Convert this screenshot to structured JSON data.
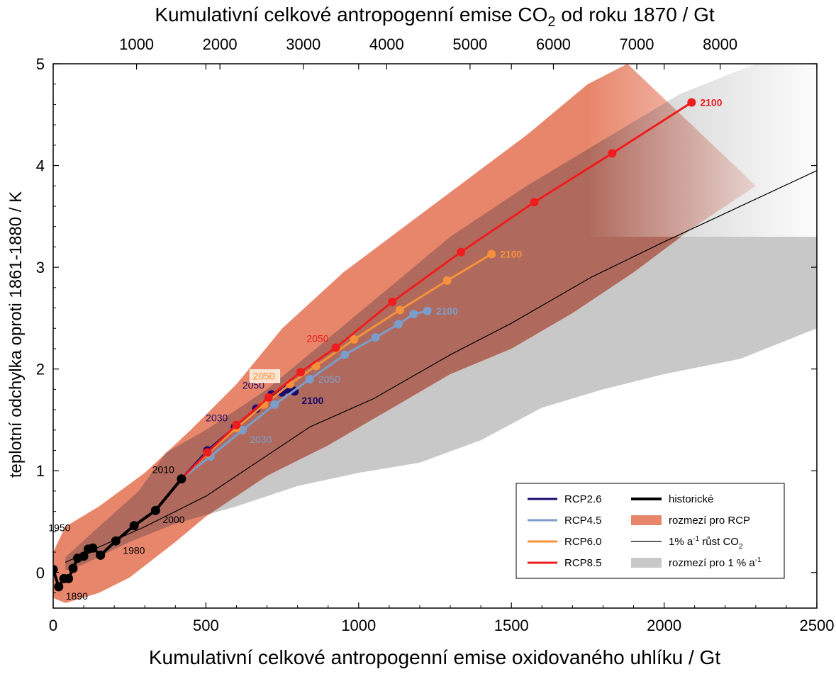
{
  "chart_data": {
    "type": "line",
    "title": "",
    "xlabel": "Kumulativní celkové antropogenní emise oxidovaného uhlíku  /  Gt",
    "ylabel": "teplotní odchylka oproti 1861-1880  /  K",
    "top_xlabel_parts": [
      "Kumulativní celkové antropogenní emise CO",
      "2",
      " od roku 1870  /  Gt"
    ],
    "xlim": [
      0,
      2500
    ],
    "ylim": [
      -0.35,
      5
    ],
    "xticks": [
      0,
      500,
      1000,
      1500,
      2000,
      2500
    ],
    "xtick_labels": [
      "0",
      "500",
      "1000",
      "1500",
      "2000",
      "2500"
    ],
    "yticks": [
      0,
      1,
      2,
      3,
      4,
      5
    ],
    "ytick_labels": [
      "0",
      "1",
      "2",
      "3",
      "4",
      "5"
    ],
    "top_ticks_co2": [
      1000,
      2000,
      3000,
      4000,
      5000,
      6000,
      7000,
      8000
    ],
    "top_tick_labels": [
      "1000",
      "2000",
      "3000",
      "4000",
      "5000",
      "6000",
      "7000",
      "8000"
    ],
    "grid": false,
    "legend_position": "bottom-right",
    "colors": {
      "rcp26": "#1a0a6b",
      "rcp45": "#7b9dcb",
      "rcp60": "#f5913a",
      "rcp85": "#ee1c1c",
      "historical": "#000000",
      "rcp_range": "#e8866b",
      "rcp_range_dark": "#b06a5d",
      "pct_range": "#c8c8c8",
      "pct_line": "#000000"
    },
    "series": [
      {
        "name": "RCP2.6",
        "color": "#1a0a6b",
        "x": [
          420,
          505,
          595,
          665,
          715,
          748,
          765,
          785,
          790
        ],
        "y": [
          0.92,
          1.2,
          1.43,
          1.61,
          1.75,
          1.77,
          1.8,
          1.79,
          1.78
        ],
        "labels": [
          {
            "text": "2030",
            "x": 595,
            "y": 1.43,
            "pos": "left"
          },
          {
            "text": "2050",
            "x": 715,
            "y": 1.75,
            "pos": "left"
          },
          {
            "text": "2100",
            "x": 790,
            "y": 1.78,
            "pos": "below-right"
          }
        ]
      },
      {
        "name": "RCP4.5",
        "color": "#7b9dcb",
        "x": [
          420,
          515,
          620,
          725,
          840,
          955,
          1055,
          1130,
          1180,
          1225
        ],
        "y": [
          0.92,
          1.14,
          1.4,
          1.65,
          1.9,
          2.14,
          2.31,
          2.44,
          2.54,
          2.57
        ],
        "labels": [
          {
            "text": "2030",
            "x": 620,
            "y": 1.4,
            "pos": "below-right"
          },
          {
            "text": "2050",
            "x": 840,
            "y": 1.9,
            "pos": "right"
          },
          {
            "text": "2100",
            "x": 1225,
            "y": 2.57,
            "pos": "right"
          }
        ]
      },
      {
        "name": "RCP6.0",
        "color": "#f5913a",
        "x": [
          420,
          505,
          600,
          690,
          775,
          860,
          985,
          1135,
          1290,
          1435
        ],
        "y": [
          0.92,
          1.17,
          1.42,
          1.65,
          1.85,
          2.03,
          2.29,
          2.58,
          2.87,
          3.13
        ],
        "labels": [
          {
            "text": "2050",
            "x": 700,
            "y": 1.93,
            "pos": "boxed"
          },
          {
            "text": "2100",
            "x": 1435,
            "y": 3.13,
            "pos": "right"
          }
        ]
      },
      {
        "name": "RCP8.5",
        "color": "#ee1c1c",
        "x": [
          420,
          505,
          600,
          705,
          810,
          925,
          1110,
          1335,
          1575,
          1830,
          2090
        ],
        "y": [
          0.92,
          1.18,
          1.45,
          1.72,
          1.97,
          2.21,
          2.66,
          3.15,
          3.64,
          4.12,
          4.62
        ],
        "labels": [
          {
            "text": "2050",
            "x": 925,
            "y": 2.21,
            "pos": "left"
          },
          {
            "text": "2100",
            "x": 2090,
            "y": 4.62,
            "pos": "right"
          }
        ]
      },
      {
        "name": "historické",
        "color": "#000000",
        "x": [
          0,
          18,
          35,
          50,
          65,
          80,
          100,
          115,
          130,
          155,
          205,
          265,
          335,
          420
        ],
        "y": [
          0.03,
          -0.14,
          -0.06,
          -0.06,
          0.04,
          0.14,
          0.16,
          0.23,
          0.24,
          0.17,
          0.31,
          0.46,
          0.61,
          0.92
        ],
        "labels": [
          {
            "text": "1890",
            "x": 18,
            "y": -0.14,
            "pos": "below-right"
          },
          {
            "text": "1950",
            "x": 80,
            "y": 0.35,
            "pos": "left"
          },
          {
            "text": "1980",
            "x": 205,
            "y": 0.31,
            "pos": "below-right"
          },
          {
            "text": "2000",
            "x": 335,
            "y": 0.61,
            "pos": "below-right"
          },
          {
            "text": "2010",
            "x": 420,
            "y": 0.92,
            "pos": "left"
          }
        ]
      },
      {
        "name": "1% a-1 růst CO2",
        "color": "#000000",
        "x": [
          40,
          150,
          300,
          500,
          650,
          840,
          1050,
          1300,
          1500,
          1760,
          2000,
          2250,
          2500
        ],
        "y": [
          0.1,
          0.25,
          0.45,
          0.75,
          1.05,
          1.43,
          1.71,
          2.14,
          2.45,
          2.9,
          3.25,
          3.6,
          3.95
        ]
      }
    ],
    "ranges": [
      {
        "name": "rozmezí pro RCP",
        "upper": {
          "x": [
            0,
            40,
            150,
            300,
            450,
            600,
            750,
            950,
            1150,
            1350,
            1550,
            1750,
            1880
          ],
          "y": [
            0.2,
            0.45,
            0.65,
            0.98,
            1.4,
            1.85,
            2.4,
            2.95,
            3.4,
            3.85,
            4.3,
            4.8,
            5.0
          ]
        },
        "lower": {
          "x": [
            2300,
            2100,
            1900,
            1700,
            1500,
            1300,
            1100,
            900,
            700,
            500,
            400,
            250,
            150,
            40,
            0
          ],
          "y": [
            3.8,
            3.4,
            2.95,
            2.55,
            2.2,
            1.95,
            1.6,
            1.25,
            0.95,
            0.55,
            0.3,
            -0.05,
            -0.2,
            -0.3,
            -0.25
          ]
        }
      },
      {
        "name": "rozmezí pro 1 % a-1",
        "upper": {
          "x": [
            40,
            150,
            280,
            370,
            500,
            700,
            900,
            1100,
            1300,
            1550,
            1800,
            2050,
            2300,
            2500
          ],
          "y": [
            0.15,
            0.45,
            0.8,
            1.18,
            1.4,
            1.8,
            2.3,
            2.8,
            3.3,
            3.8,
            4.25,
            4.7,
            5.0,
            5.0
          ]
        },
        "lower": {
          "x": [
            2500,
            2250,
            2000,
            1800,
            1600,
            1400,
            1200,
            1000,
            800,
            600,
            400,
            250,
            100,
            40
          ],
          "y": [
            2.4,
            2.1,
            1.95,
            1.8,
            1.62,
            1.3,
            1.08,
            0.98,
            0.85,
            0.65,
            0.48,
            0.3,
            0.08,
            0.02
          ]
        }
      }
    ],
    "legend": {
      "left": [
        {
          "label": "RCP2.6",
          "color": "#1a0a6b",
          "kind": "line"
        },
        {
          "label": "RCP4.5",
          "color": "#7b9dcb",
          "kind": "line"
        },
        {
          "label": "RCP6.0",
          "color": "#f5913a",
          "kind": "line"
        },
        {
          "label": "RCP8.5",
          "color": "#ee1c1c",
          "kind": "line"
        }
      ],
      "right": [
        {
          "parts": [
            "historické"
          ],
          "color": "#000000",
          "kind": "thick-line"
        },
        {
          "parts": [
            "rozmezí pro RCP"
          ],
          "color": "#e8866b",
          "kind": "patch"
        },
        {
          "parts": [
            "1% a",
            "-1",
            " růst CO",
            "2"
          ],
          "color": "#000000",
          "kind": "thin-line"
        },
        {
          "parts": [
            "rozmezí pro 1 % a",
            "-1"
          ],
          "color": "#c8c8c8",
          "kind": "patch"
        }
      ]
    }
  }
}
